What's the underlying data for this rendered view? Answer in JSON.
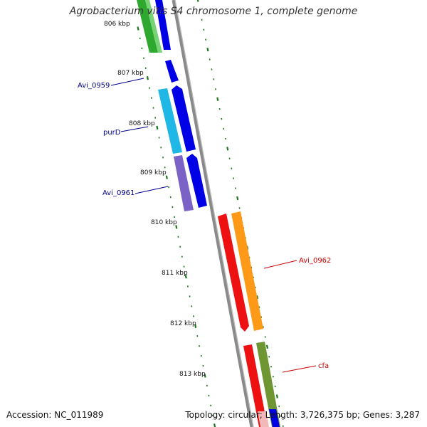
{
  "title": "Agrobacterium vitis S4 chromosome 1, complete genome",
  "footer": {
    "accession": "Accession: NC_011989",
    "summary": "Topology: circular; Length: 3,726,375 bp; Genes: 3,287"
  },
  "colors": {
    "backbone": "#888888",
    "tick": "#1a7a1a",
    "label_blue": "#00008b",
    "label_red": "#cc0000"
  },
  "kbp_labels": [
    "806 kbp",
    "807 kbp",
    "808 kbp",
    "809 kbp",
    "810 kbp",
    "811 kbp",
    "812 kbp",
    "813 kbp"
  ],
  "gene_labels": [
    {
      "name": "Avi_0959",
      "color": "#00008b"
    },
    {
      "name": "purD",
      "color": "#00008b"
    },
    {
      "name": "Avi_0961",
      "color": "#00008b"
    },
    {
      "name": "Avi_0962",
      "color": "#cc0000"
    },
    {
      "name": "cfa",
      "color": "#cc0000"
    }
  ]
}
